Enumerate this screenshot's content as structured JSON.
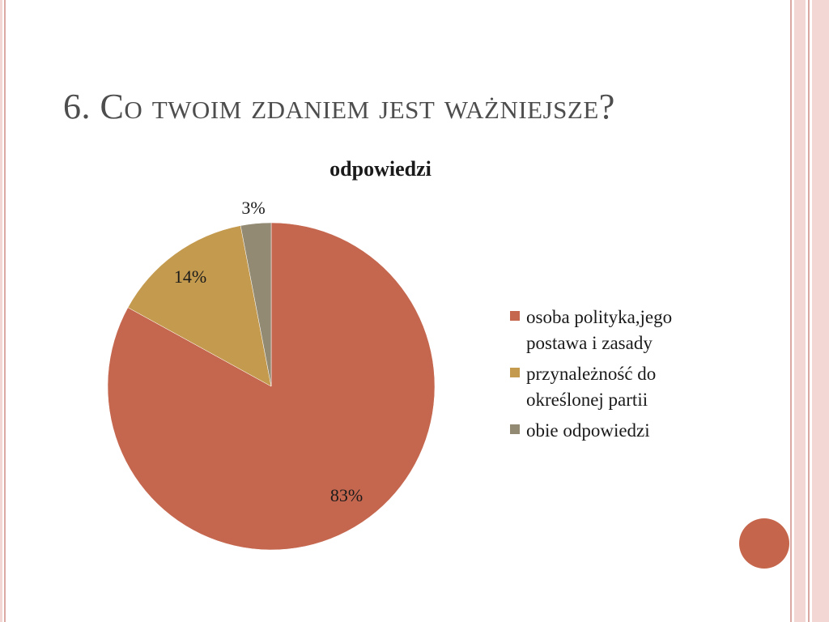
{
  "slide": {
    "title": "6. Co twoim zdaniem jest ważniejsze?"
  },
  "colors": {
    "border_light": "#f2d7d5",
    "border_dark": "#dba8a4",
    "accent": "#c5664c"
  },
  "chart_data": {
    "type": "pie",
    "title": "odpowiedzi",
    "labels": [
      "osoba polityka,jego postawa i zasady",
      "przynależność do określonej partii",
      "obie odpowiedzi"
    ],
    "values": [
      83,
      14,
      3
    ],
    "data_labels": [
      "83%",
      "14%",
      "3%"
    ],
    "colors": [
      "#c5674f",
      "#c49a4e",
      "#938a73"
    ],
    "legend_position": "right"
  }
}
